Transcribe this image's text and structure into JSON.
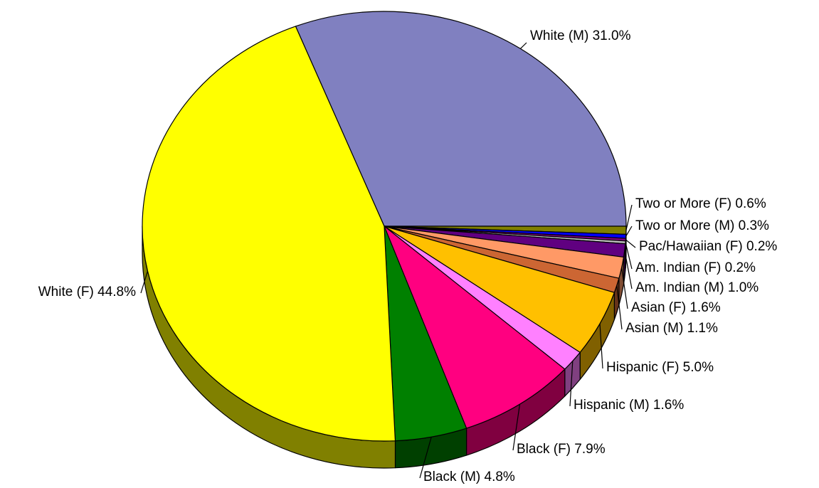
{
  "chart_data": {
    "type": "pie",
    "title": "",
    "style": "3d",
    "slices": [
      {
        "label": "White (M) 31.0%",
        "value": 31.0,
        "color": "#8080c0"
      },
      {
        "label": "Two or More (F) 0.6%",
        "value": 0.6,
        "color": "#808000"
      },
      {
        "label": "Two or More (M) 0.3%",
        "value": 0.3,
        "color": "#0000ff"
      },
      {
        "label": "Pac/Hawaiian (F) 0.2%",
        "value": 0.2,
        "color": "#800080"
      },
      {
        "label": "Am. Indian (F) 0.2%",
        "value": 0.2,
        "color": "#c0c0c0"
      },
      {
        "label": "Am. Indian (M) 1.0%",
        "value": 1.0,
        "color": "#600080"
      },
      {
        "label": "Asian (F) 1.6%",
        "value": 1.6,
        "color": "#ff9966"
      },
      {
        "label": "Asian (M) 1.1%",
        "value": 1.1,
        "color": "#cc6633"
      },
      {
        "label": "Hispanic (F) 5.0%",
        "value": 5.0,
        "color": "#ffc000"
      },
      {
        "label": "Hispanic (M) 1.6%",
        "value": 1.6,
        "color": "#ff80ff"
      },
      {
        "label": "Black (F) 7.9%",
        "value": 7.9,
        "color": "#ff0080"
      },
      {
        "label": "Black (M) 4.8%",
        "value": 4.8,
        "color": "#008000"
      },
      {
        "label": "White (F) 44.8%",
        "value": 44.8,
        "color": "#ffff00"
      }
    ]
  }
}
